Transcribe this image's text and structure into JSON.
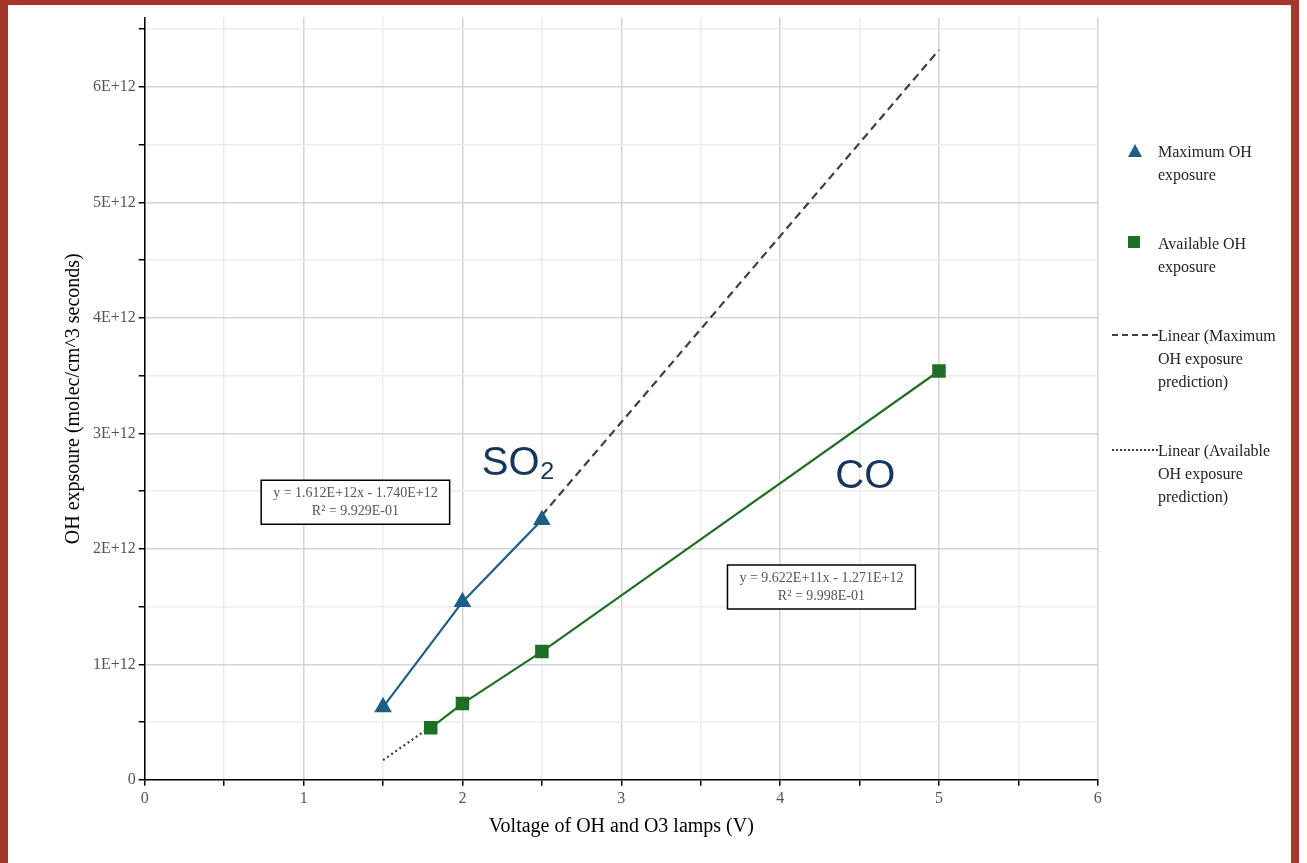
{
  "chart_data": {
    "type": "line",
    "xlabel": "Voltage of OH and O3 lamps (V)",
    "ylabel": "OH expsoure (molec/cm^3 seconds)",
    "xlim": [
      0,
      6
    ],
    "ylim": [
      0,
      6600000000000
    ],
    "xticks": [
      0,
      {
        "value": 0.5,
        "label": null
      },
      1,
      {
        "value": 1.5,
        "label": null
      },
      2,
      {
        "value": 2.5,
        "label": null
      },
      3,
      {
        "value": 3.5,
        "label": null
      },
      4,
      {
        "value": 4.5,
        "label": null
      },
      5,
      {
        "value": 5.5,
        "label": null
      },
      6
    ],
    "yticks": [
      {
        "value": 0,
        "label": "0"
      },
      {
        "value": 500000000000,
        "label": null
      },
      {
        "value": 1000000000000,
        "label": "1E+12"
      },
      {
        "value": 1500000000000,
        "label": null
      },
      {
        "value": 2000000000000,
        "label": "2E+12"
      },
      {
        "value": 2500000000000,
        "label": null
      },
      {
        "value": 3000000000000,
        "label": "3E+12"
      },
      {
        "value": 3500000000000,
        "label": null
      },
      {
        "value": 4000000000000,
        "label": "4E+12"
      },
      {
        "value": 4500000000000,
        "label": null
      },
      {
        "value": 5000000000000,
        "label": "5E+12"
      },
      {
        "value": 5500000000000,
        "label": null
      },
      {
        "value": 6000000000000,
        "label": "6E+12"
      },
      {
        "value": 6500000000000,
        "label": null
      }
    ],
    "grid": true,
    "legend": "right",
    "series": [
      {
        "name": "Maximum OH exposure",
        "color": "#1d5f86",
        "marker": "triangle",
        "line_style": "solid",
        "x": [
          1.5,
          2,
          2.5
        ],
        "values": [
          630000000000,
          1540000000000,
          2250000000000
        ]
      },
      {
        "name": "Available OH exposure",
        "color": "#1f6e26",
        "marker": "square",
        "line_style": "solid",
        "x": [
          1.8,
          2,
          2.5,
          5
        ],
        "values": [
          450000000000,
          660000000000,
          1110000000000,
          3540000000000
        ]
      },
      {
        "name": "Linear (Maximum OH exposure prediction)",
        "color": "#3f3f3f",
        "marker": "none",
        "line_style": "dashed",
        "x": [
          2.5,
          5
        ],
        "values": [
          2290000000000,
          6320000000000
        ]
      },
      {
        "name": "Linear (Available OH exposure prediction)",
        "color": "#3f3f3f",
        "marker": "none",
        "line_style": "dotted",
        "x": [
          1.5,
          1.8
        ],
        "values": [
          170000000000,
          460000000000
        ]
      }
    ],
    "annotations": [
      "y = 1.612E+12x - 1.740E+12\nR² = 9.929E-01",
      "y = 9.622E+11x - 1.271E+12\nR² = 9.998E-01",
      "SO₂",
      "CO"
    ]
  }
}
